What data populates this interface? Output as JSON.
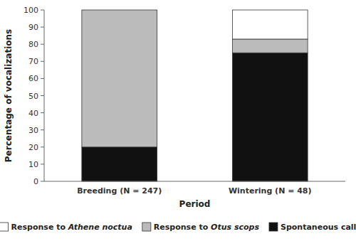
{
  "chart_data": {
    "type": "bar",
    "stacked": true,
    "xlabel": "Period",
    "ylabel": "Percentage of vocalizations",
    "categories": [
      "Breeding (N = 247)",
      "Wintering (N = 48)"
    ],
    "series": [
      {
        "name": "Spontaneous call",
        "color": "#111111",
        "values": [
          20,
          75
        ]
      },
      {
        "name": "Response to Otus scops",
        "color": "#bbbbbb",
        "values": [
          80,
          8
        ]
      },
      {
        "name": "Response to Athene noctua",
        "color": "#ffffff",
        "values": [
          0,
          17
        ]
      }
    ],
    "ylim": [
      0,
      100
    ],
    "yticks": [
      0,
      10,
      20,
      30,
      40,
      50,
      60,
      70,
      80,
      90,
      100
    ],
    "grid": false,
    "legend": "bottom"
  }
}
